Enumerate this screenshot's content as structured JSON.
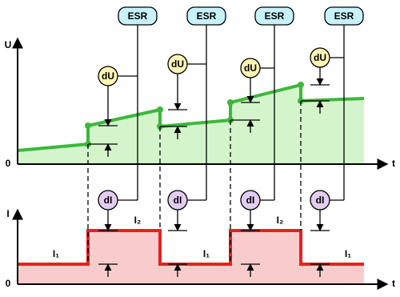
{
  "voltage_plot": {
    "axis_label": "U",
    "time_label": "t",
    "origin_label": "0"
  },
  "current_plot": {
    "axis_label": "I",
    "time_label": "t",
    "origin_label": "0"
  },
  "esr_boxes": [
    "ESR",
    "ESR",
    "ESR",
    "ESR"
  ],
  "du_labels": [
    "dU",
    "dU",
    "dU",
    "dU"
  ],
  "di_labels": [
    "dI",
    "dI",
    "dI",
    "dI"
  ],
  "current_labels": [
    "I₁",
    "I₂",
    "I₁",
    "I₂",
    "I₁"
  ]
}
